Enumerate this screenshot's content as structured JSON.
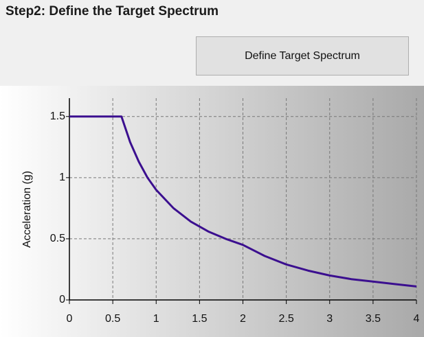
{
  "header": {
    "title": "Step2: Define the Target Spectrum"
  },
  "button": {
    "label": "Define Target Spectrum"
  },
  "chart_data": {
    "type": "line",
    "ylabel": "Acceleration (g)",
    "x": [
      0,
      0.6,
      0.7,
      0.8,
      0.9,
      1.0,
      1.2,
      1.4,
      1.6,
      1.8,
      2.0,
      2.25,
      2.5,
      2.75,
      3.0,
      3.25,
      3.5,
      3.75,
      4.0
    ],
    "series": [
      {
        "color": "#3b0f8f",
        "values": [
          1.5,
          1.5,
          1.29,
          1.13,
          1.0,
          0.9,
          0.75,
          0.64,
          0.56,
          0.5,
          0.45,
          0.36,
          0.29,
          0.24,
          0.2,
          0.17,
          0.15,
          0.13,
          0.11
        ]
      }
    ],
    "xlim": [
      0,
      4
    ],
    "xticks": [
      0,
      0.5,
      1,
      1.5,
      2,
      2.5,
      3,
      3.5,
      4
    ],
    "ylim": [
      0,
      1.65
    ],
    "yticks": [
      0,
      0.5,
      1,
      1.5
    ],
    "grid": true
  }
}
